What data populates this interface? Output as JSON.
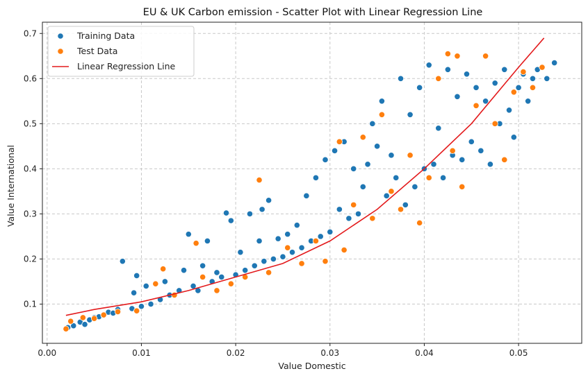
{
  "chart_data": {
    "type": "scatter",
    "title": "EU & UK  Carbon emission - Scatter Plot with Linear Regression Line",
    "xlabel": "Value Domestic",
    "ylabel": "Value International",
    "xlim": [
      -0.0005,
      0.0567
    ],
    "ylim": [
      0.013,
      0.725
    ],
    "xticks": [
      0.0,
      0.01,
      0.02,
      0.03,
      0.04,
      0.05
    ],
    "xtick_labels": [
      "0.00",
      "0.01",
      "0.02",
      "0.03",
      "0.04",
      "0.05"
    ],
    "yticks": [
      0.1,
      0.2,
      0.3,
      0.4,
      0.5,
      0.6,
      0.7
    ],
    "ytick_labels": [
      "0.1",
      "0.2",
      "0.3",
      "0.4",
      "0.5",
      "0.6",
      "0.7"
    ],
    "grid": true,
    "legend_position": "top-left",
    "colors": {
      "training": "#1f77b4",
      "test": "#ff7f0e",
      "regression": "#e31a1c"
    },
    "series": [
      {
        "name": "Training Data",
        "kind": "points",
        "points": [
          [
            0.0022,
            0.048
          ],
          [
            0.0028,
            0.052
          ],
          [
            0.0035,
            0.06
          ],
          [
            0.004,
            0.055
          ],
          [
            0.0045,
            0.065
          ],
          [
            0.005,
            0.07
          ],
          [
            0.0055,
            0.072
          ],
          [
            0.006,
            0.075
          ],
          [
            0.0065,
            0.082
          ],
          [
            0.007,
            0.08
          ],
          [
            0.0075,
            0.088
          ],
          [
            0.008,
            0.195
          ],
          [
            0.009,
            0.09
          ],
          [
            0.0092,
            0.125
          ],
          [
            0.0095,
            0.163
          ],
          [
            0.01,
            0.095
          ],
          [
            0.0105,
            0.14
          ],
          [
            0.011,
            0.1
          ],
          [
            0.012,
            0.11
          ],
          [
            0.0125,
            0.15
          ],
          [
            0.013,
            0.12
          ],
          [
            0.014,
            0.13
          ],
          [
            0.0145,
            0.175
          ],
          [
            0.015,
            0.255
          ],
          [
            0.0155,
            0.14
          ],
          [
            0.016,
            0.13
          ],
          [
            0.0165,
            0.185
          ],
          [
            0.017,
            0.24
          ],
          [
            0.0175,
            0.15
          ],
          [
            0.018,
            0.17
          ],
          [
            0.0185,
            0.16
          ],
          [
            0.019,
            0.302
          ],
          [
            0.0195,
            0.285
          ],
          [
            0.02,
            0.165
          ],
          [
            0.0205,
            0.215
          ],
          [
            0.021,
            0.175
          ],
          [
            0.0215,
            0.3
          ],
          [
            0.022,
            0.185
          ],
          [
            0.0225,
            0.24
          ],
          [
            0.0228,
            0.31
          ],
          [
            0.023,
            0.195
          ],
          [
            0.0235,
            0.33
          ],
          [
            0.024,
            0.2
          ],
          [
            0.0245,
            0.245
          ],
          [
            0.025,
            0.205
          ],
          [
            0.0255,
            0.255
          ],
          [
            0.026,
            0.215
          ],
          [
            0.0265,
            0.275
          ],
          [
            0.027,
            0.225
          ],
          [
            0.0275,
            0.34
          ],
          [
            0.028,
            0.24
          ],
          [
            0.0285,
            0.38
          ],
          [
            0.029,
            0.25
          ],
          [
            0.0295,
            0.42
          ],
          [
            0.03,
            0.26
          ],
          [
            0.0305,
            0.44
          ],
          [
            0.031,
            0.31
          ],
          [
            0.0315,
            0.46
          ],
          [
            0.032,
            0.29
          ],
          [
            0.0325,
            0.4
          ],
          [
            0.033,
            0.3
          ],
          [
            0.0335,
            0.36
          ],
          [
            0.034,
            0.41
          ],
          [
            0.0345,
            0.5
          ],
          [
            0.035,
            0.45
          ],
          [
            0.0355,
            0.55
          ],
          [
            0.036,
            0.34
          ],
          [
            0.0365,
            0.43
          ],
          [
            0.037,
            0.38
          ],
          [
            0.0375,
            0.6
          ],
          [
            0.038,
            0.32
          ],
          [
            0.0385,
            0.52
          ],
          [
            0.039,
            0.36
          ],
          [
            0.0395,
            0.58
          ],
          [
            0.04,
            0.4
          ],
          [
            0.0405,
            0.63
          ],
          [
            0.041,
            0.41
          ],
          [
            0.0415,
            0.49
          ],
          [
            0.042,
            0.38
          ],
          [
            0.0425,
            0.62
          ],
          [
            0.043,
            0.43
          ],
          [
            0.0435,
            0.56
          ],
          [
            0.044,
            0.42
          ],
          [
            0.0445,
            0.61
          ],
          [
            0.045,
            0.46
          ],
          [
            0.0455,
            0.58
          ],
          [
            0.046,
            0.44
          ],
          [
            0.0465,
            0.55
          ],
          [
            0.047,
            0.41
          ],
          [
            0.0475,
            0.59
          ],
          [
            0.048,
            0.5
          ],
          [
            0.0485,
            0.62
          ],
          [
            0.049,
            0.53
          ],
          [
            0.0495,
            0.47
          ],
          [
            0.05,
            0.58
          ],
          [
            0.0505,
            0.61
          ],
          [
            0.051,
            0.55
          ],
          [
            0.0515,
            0.6
          ],
          [
            0.052,
            0.62
          ],
          [
            0.053,
            0.6
          ],
          [
            0.0538,
            0.635
          ]
        ]
      },
      {
        "name": "Test Data",
        "kind": "points",
        "points": [
          [
            0.002,
            0.045
          ],
          [
            0.0025,
            0.062
          ],
          [
            0.0038,
            0.07
          ],
          [
            0.005,
            0.068
          ],
          [
            0.006,
            0.076
          ],
          [
            0.0075,
            0.083
          ],
          [
            0.0095,
            0.085
          ],
          [
            0.0115,
            0.145
          ],
          [
            0.0123,
            0.178
          ],
          [
            0.0135,
            0.12
          ],
          [
            0.0158,
            0.235
          ],
          [
            0.0165,
            0.16
          ],
          [
            0.018,
            0.13
          ],
          [
            0.0195,
            0.145
          ],
          [
            0.021,
            0.16
          ],
          [
            0.0225,
            0.375
          ],
          [
            0.0235,
            0.17
          ],
          [
            0.0255,
            0.225
          ],
          [
            0.027,
            0.19
          ],
          [
            0.0285,
            0.24
          ],
          [
            0.0295,
            0.195
          ],
          [
            0.031,
            0.46
          ],
          [
            0.0315,
            0.22
          ],
          [
            0.0325,
            0.32
          ],
          [
            0.0335,
            0.47
          ],
          [
            0.0345,
            0.29
          ],
          [
            0.0355,
            0.52
          ],
          [
            0.0365,
            0.35
          ],
          [
            0.0375,
            0.31
          ],
          [
            0.0385,
            0.43
          ],
          [
            0.0395,
            0.28
          ],
          [
            0.0405,
            0.38
          ],
          [
            0.0415,
            0.6
          ],
          [
            0.0425,
            0.655
          ],
          [
            0.043,
            0.44
          ],
          [
            0.0435,
            0.65
          ],
          [
            0.044,
            0.36
          ],
          [
            0.0455,
            0.54
          ],
          [
            0.0465,
            0.65
          ],
          [
            0.0475,
            0.5
          ],
          [
            0.0485,
            0.42
          ],
          [
            0.0495,
            0.57
          ],
          [
            0.0505,
            0.615
          ],
          [
            0.0515,
            0.58
          ],
          [
            0.0525,
            0.625
          ]
        ]
      },
      {
        "name": "Linear Regression Line",
        "kind": "curve",
        "points": [
          [
            0.002,
            0.075
          ],
          [
            0.005,
            0.088
          ],
          [
            0.01,
            0.105
          ],
          [
            0.015,
            0.13
          ],
          [
            0.02,
            0.16
          ],
          [
            0.025,
            0.19
          ],
          [
            0.03,
            0.24
          ],
          [
            0.035,
            0.31
          ],
          [
            0.04,
            0.4
          ],
          [
            0.045,
            0.5
          ],
          [
            0.05,
            0.625
          ],
          [
            0.0527,
            0.69
          ]
        ]
      }
    ]
  }
}
